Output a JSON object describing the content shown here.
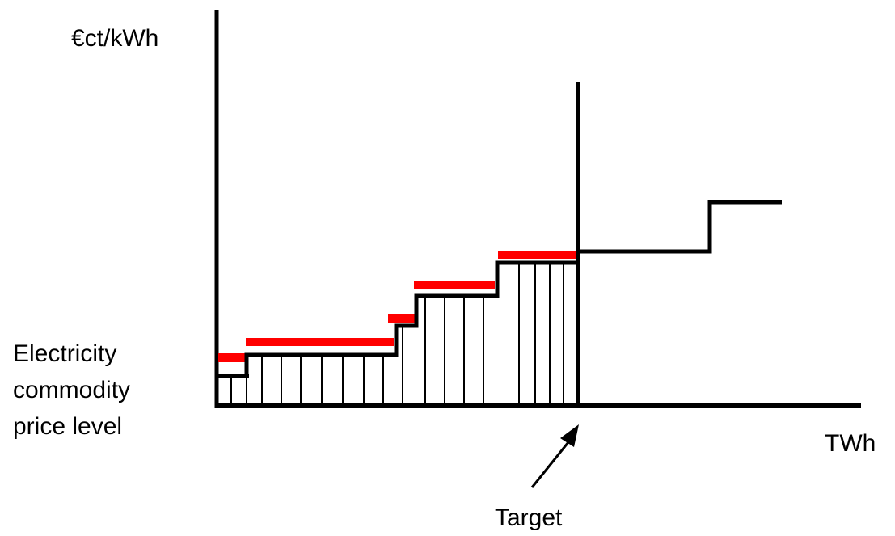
{
  "labels": {
    "y_unit": "€ct/kWh",
    "x_unit": "TWh",
    "baseline_label": [
      "Electricity",
      "commodity",
      "price level"
    ],
    "target_label": "Target"
  },
  "colors": {
    "curve": "#000000",
    "highlight": "#ff0000",
    "background": "#ffffff"
  }
}
